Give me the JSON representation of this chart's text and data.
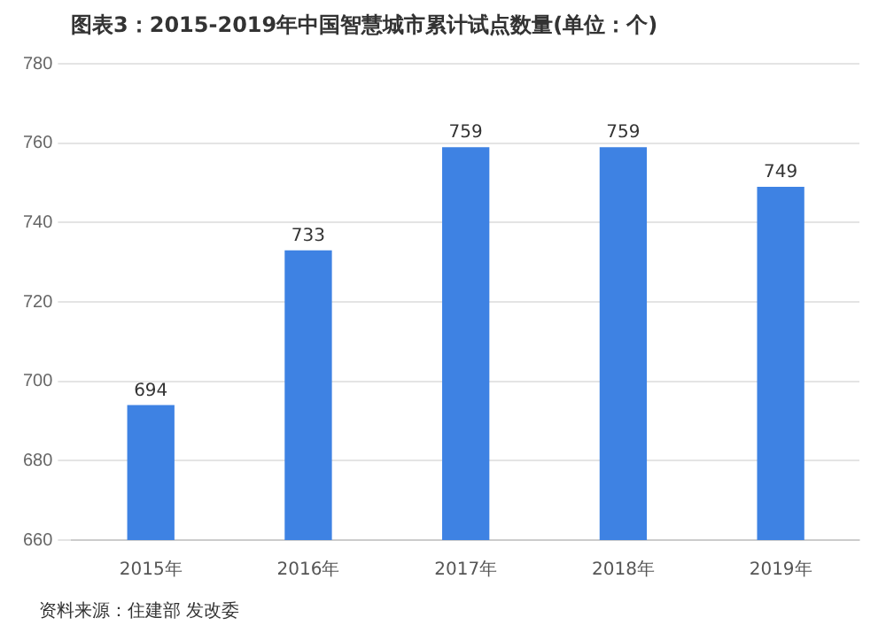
{
  "chart_data": {
    "type": "bar",
    "title": "图表3：2015-2019年中国智慧城市累计试点数量(单位：个)",
    "categories": [
      "2015年",
      "2016年",
      "2017年",
      "2018年",
      "2019年"
    ],
    "values": [
      694,
      733,
      759,
      759,
      749
    ],
    "color": "#3e82e3",
    "ylim": [
      660,
      780
    ],
    "yticks": [
      660,
      680,
      700,
      720,
      740,
      760,
      780
    ],
    "grid": "y",
    "data_labels": true,
    "annotations": [
      "资料来源：住建部 发改委"
    ]
  }
}
